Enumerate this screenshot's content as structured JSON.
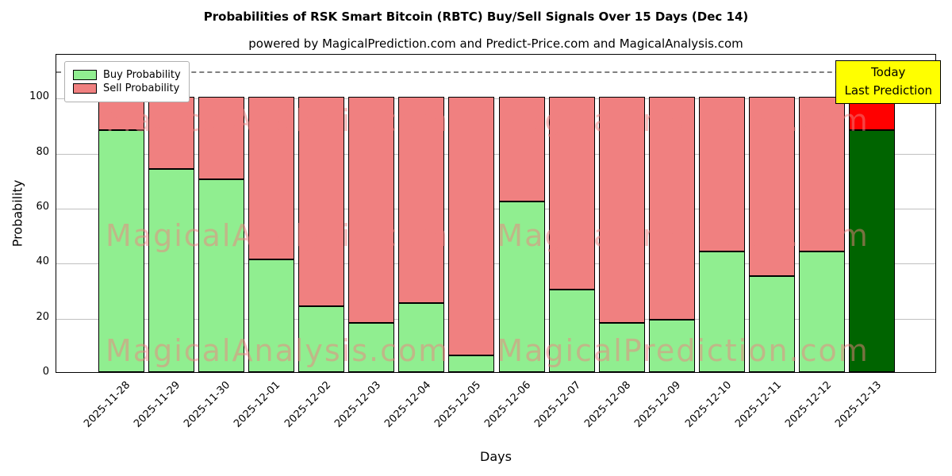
{
  "chart_data": {
    "type": "bar",
    "stacked": true,
    "title": "Probabilities of RSK Smart Bitcoin (RBTC) Buy/Sell Signals Over 15 Days (Dec 14)",
    "subtitle": "powered by MagicalPrediction.com and Predict-Price.com and MagicalAnalysis.com",
    "xlabel": "Days",
    "ylabel": "Probability",
    "categories": [
      "2025-11-28",
      "2025-11-29",
      "2025-11-30",
      "2025-12-01",
      "2025-12-02",
      "2025-12-03",
      "2025-12-04",
      "2025-12-05",
      "2025-12-06",
      "2025-12-07",
      "2025-12-08",
      "2025-12-09",
      "2025-12-10",
      "2025-12-11",
      "2025-12-12",
      "2025-12-13"
    ],
    "series": [
      {
        "name": "Buy Probability",
        "color": "#90EE90",
        "values": [
          88,
          74,
          70,
          41,
          24,
          18,
          25,
          6,
          62,
          30,
          18,
          19,
          44,
          35,
          44,
          88
        ]
      },
      {
        "name": "Sell Probability",
        "color": "#F08080",
        "values": [
          12,
          26,
          30,
          59,
          76,
          82,
          75,
          94,
          38,
          70,
          82,
          81,
          56,
          65,
          56,
          12
        ]
      }
    ],
    "highlight_last_bar": {
      "buy_color": "#006400",
      "sell_color": "#FF0000"
    },
    "yticks": [
      0,
      20,
      40,
      60,
      80,
      100
    ],
    "ylim": [
      0,
      116
    ],
    "reference_line_y": 110,
    "grid": true,
    "legend_position": "upper left"
  },
  "legend": {
    "items": [
      {
        "label": "Buy Probability",
        "color": "#90EE90"
      },
      {
        "label": "Sell Probability",
        "color": "#F08080"
      }
    ]
  },
  "annotation_box": {
    "line1": "Today",
    "line2": "Last Prediction",
    "bg_color": "#FFFF00"
  },
  "watermarks": {
    "left_text": "MagicalAnalysis.com",
    "right_text": "MagicalPrediction.com"
  },
  "colors": {
    "grid": "#c0c0c0",
    "reference_line": "#808080",
    "bar_edge": "#000000",
    "watermark": "rgba(240,128,128,0.5)"
  }
}
